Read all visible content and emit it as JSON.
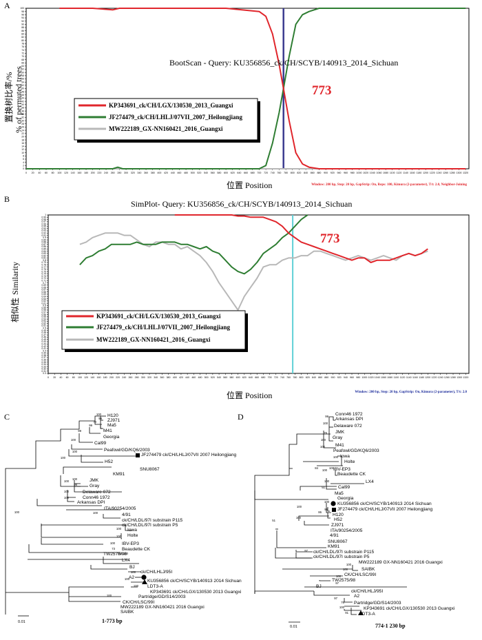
{
  "colors": {
    "red": "#e0252b",
    "green": "#2e7d32",
    "gray": "#b8b8b8",
    "vline_a": "#3b3b8f",
    "vline_b": "#5fd0d6",
    "annot": "#e0252b",
    "tree": "#000000",
    "note_a": "#e0252b",
    "note_b": "#1a2a9a"
  },
  "panel_a": {
    "letter": "A",
    "title": "BootScan - Query: KU356856_ck/CH/SCYB/140913_2014_Sichuan",
    "ylabel_cn": "置换树比率/%",
    "ylabel_en": "% of permuted trees",
    "xlabel": "位置 Position",
    "annotation": "773",
    "note": "Window: 200 bp, Step: 20 bp, GapStrip: On, Reps: 100, Kimura (2-parameter), T/t: 2.0, Neighbor-Joining",
    "legend": [
      "KP343691_ck/CH/LGX/130530_2013_Guangxi",
      "JF274479_ck/CH/LHLJ/07VII_2007_Heilongjiang",
      "MW222189_GX-NN160421_2016_Guangxi"
    ]
  },
  "panel_b": {
    "letter": "B",
    "title": "SimPlot- Query: KU356856_ck/CH/SCYB/140913_2014_Sichuan",
    "ylabel_cn": "相似性",
    "ylabel_en": "Similarity",
    "xlabel": "位置 Position",
    "annotation": "773",
    "note": "Window: 200 bp, Step: 20 bp, GapStrip: On, Kimura (2-parameter), T/t: 2.0",
    "legend": [
      "KP343691_ck/CH/LGX/130530_2013_Guangxi",
      "JF274479_ck/CH/LHLJ/07VII_2007_Heilongjiang",
      "MW222189_GX-NN160421_2016_Guangxi"
    ]
  },
  "chart_data": [
    {
      "type": "line",
      "title": "BootScan - Query: KU356856_ck/CH/SCYB/140913_2014_Sichuan",
      "xlabel": "位置 Position",
      "ylabel": "% of permuted trees",
      "xlim": [
        0,
        1330
      ],
      "ylim": [
        0,
        100
      ],
      "x_ticks": [
        0,
        20,
        40,
        60,
        80,
        100,
        120,
        140,
        160,
        180,
        200,
        220,
        240,
        260,
        280,
        300,
        320,
        340,
        360,
        380,
        400,
        420,
        440,
        460,
        480,
        500,
        520,
        540,
        560,
        580,
        600,
        620,
        640,
        660,
        680,
        700,
        720,
        740,
        760,
        780,
        800,
        820,
        840,
        860,
        880,
        900,
        920,
        940,
        960,
        980,
        1000,
        1020,
        1040,
        1060,
        1080,
        1100,
        1120,
        1140,
        1160,
        1180,
        1200,
        1220,
        1240,
        1260,
        1280,
        1300,
        1320
      ],
      "y_ticks": [
        0,
        2,
        4,
        6,
        8,
        10,
        12,
        14,
        16,
        18,
        20,
        22,
        24,
        26,
        28,
        30,
        32,
        34,
        36,
        38,
        40,
        42,
        44,
        46,
        48,
        50,
        52,
        54,
        56,
        58,
        60,
        62,
        64,
        66,
        68,
        70,
        72,
        74,
        76,
        78,
        80,
        82,
        84,
        86,
        88,
        90,
        92,
        94,
        96,
        98,
        100
      ],
      "breakpoint": 773,
      "series": [
        {
          "name": "KP343691_ck/CH/LGX/130530_2013_Guangxi",
          "color": "red",
          "x": [
            100,
            200,
            260,
            280,
            300,
            400,
            500,
            600,
            700,
            720,
            740,
            760,
            773,
            790,
            810,
            830,
            850,
            880,
            1320
          ],
          "y": [
            100,
            100,
            99,
            100,
            100,
            100,
            100,
            100,
            98,
            95,
            84,
            65,
            50,
            30,
            10,
            3,
            1,
            0,
            0
          ]
        },
        {
          "name": "JF274479_ck/CH/LHLJ/07VII_2007_Heilongjiang",
          "color": "green",
          "x": [
            0,
            260,
            275,
            290,
            700,
            720,
            740,
            760,
            773,
            790,
            810,
            830,
            850,
            880,
            1320
          ],
          "y": [
            0,
            0,
            1,
            0,
            0,
            2,
            16,
            35,
            50,
            70,
            90,
            96,
            98,
            100,
            100
          ]
        },
        {
          "name": "MW222189_GX-NN160421_2016_Guangxi",
          "color": "gray",
          "x": [
            0,
            1320
          ],
          "y": [
            0,
            0
          ]
        }
      ]
    },
    {
      "type": "line",
      "title": "SimPlot- Query: KU356856_ck/CH/SCYB/140913_2014_Sichuan",
      "xlabel": "位置 Position",
      "ylabel": "Similarity",
      "xlim": [
        0,
        1330
      ],
      "ylim": [
        0.3,
        1.0
      ],
      "x_ticks": [
        0,
        20,
        40,
        60,
        80,
        100,
        120,
        140,
        160,
        180,
        200,
        220,
        240,
        260,
        280,
        300,
        320,
        340,
        360,
        380,
        400,
        420,
        440,
        460,
        480,
        500,
        520,
        540,
        560,
        580,
        600,
        620,
        640,
        660,
        680,
        700,
        720,
        740,
        760,
        780,
        800,
        820,
        840,
        860,
        880,
        900,
        920,
        940,
        960,
        980,
        1000,
        1020,
        1040,
        1060,
        1080,
        1100,
        1120,
        1140,
        1160,
        1180,
        1200,
        1220,
        1240,
        1260,
        1280,
        1300,
        1320
      ],
      "y_ticks": [
        0.3,
        0.31,
        0.32,
        0.33,
        0.34,
        0.35,
        0.36,
        0.37,
        0.38,
        0.39,
        0.4,
        0.41,
        0.42,
        0.43,
        0.44,
        0.45,
        0.46,
        0.47,
        0.48,
        0.49,
        0.5,
        0.51,
        0.52,
        0.53,
        0.54,
        0.55,
        0.56,
        0.57,
        0.58,
        0.59,
        0.6,
        0.61,
        0.62,
        0.63,
        0.64,
        0.65,
        0.66,
        0.67,
        0.68,
        0.69,
        0.7,
        0.71,
        0.72,
        0.73,
        0.74,
        0.75,
        0.76,
        0.77,
        0.78,
        0.79,
        0.8,
        0.81,
        0.82,
        0.83,
        0.84,
        0.85,
        0.86,
        0.87,
        0.88,
        0.89,
        0.9,
        0.91,
        0.92,
        0.93,
        0.94,
        0.95,
        0.96,
        0.97,
        0.98,
        0.99,
        1.0
      ],
      "breakpoint": 773,
      "series": [
        {
          "name": "KP343691_ck/CH/LGX/130530_2013_Guangxi",
          "color": "red",
          "x": [
            400,
            420,
            440,
            460,
            480,
            500,
            520,
            540,
            560,
            580,
            600,
            620,
            640,
            660,
            680,
            700,
            720,
            740,
            760,
            780,
            800,
            820,
            840,
            860,
            880,
            900,
            920,
            940,
            960,
            980,
            1000,
            1020,
            1040,
            1060,
            1080,
            1100,
            1120,
            1140,
            1160,
            1180,
            1200
          ],
          "y": [
            1.0,
            1.0,
            1.0,
            1.0,
            1.0,
            1.0,
            1.0,
            1.0,
            1.0,
            1.0,
            0.995,
            0.995,
            0.99,
            0.99,
            0.99,
            0.98,
            0.97,
            0.95,
            0.92,
            0.9,
            0.88,
            0.87,
            0.86,
            0.85,
            0.84,
            0.83,
            0.82,
            0.81,
            0.8,
            0.81,
            0.81,
            0.79,
            0.8,
            0.8,
            0.8,
            0.81,
            0.82,
            0.83,
            0.82,
            0.83,
            0.85
          ]
        },
        {
          "name": "JF274479_ck/CH/LHLJ/07VII_2007_Heilongjiang",
          "color": "green",
          "x": [
            100,
            120,
            140,
            160,
            180,
            200,
            220,
            240,
            260,
            280,
            300,
            320,
            340,
            360,
            380,
            400,
            420,
            440,
            460,
            480,
            500,
            520,
            540,
            560,
            580,
            600,
            620,
            640,
            660,
            680,
            700,
            720,
            740,
            760,
            780,
            800,
            820
          ],
          "y": [
            0.78,
            0.81,
            0.82,
            0.84,
            0.85,
            0.87,
            0.87,
            0.87,
            0.87,
            0.88,
            0.87,
            0.87,
            0.87,
            0.88,
            0.88,
            0.88,
            0.87,
            0.87,
            0.86,
            0.85,
            0.86,
            0.84,
            0.83,
            0.8,
            0.77,
            0.75,
            0.74,
            0.76,
            0.79,
            0.83,
            0.85,
            0.87,
            0.9,
            0.92,
            0.95,
            0.98,
            1.0
          ]
        },
        {
          "name": "MW222189_GX-NN160421_2016_Guangxi",
          "color": "gray",
          "x": [
            100,
            120,
            140,
            160,
            180,
            200,
            220,
            240,
            260,
            280,
            300,
            320,
            340,
            360,
            380,
            400,
            420,
            440,
            460,
            480,
            500,
            520,
            540,
            560,
            580,
            600,
            620,
            640,
            660,
            680,
            700,
            720,
            740,
            760,
            780,
            800,
            820,
            840,
            860,
            880,
            900,
            920,
            940,
            960,
            980,
            1000,
            1020,
            1040,
            1060,
            1080,
            1100,
            1120,
            1140,
            1160,
            1180,
            1200
          ],
          "y": [
            0.87,
            0.88,
            0.9,
            0.91,
            0.92,
            0.92,
            0.92,
            0.91,
            0.91,
            0.89,
            0.87,
            0.86,
            0.88,
            0.88,
            0.87,
            0.87,
            0.85,
            0.86,
            0.84,
            0.82,
            0.79,
            0.75,
            0.7,
            0.66,
            0.62,
            0.58,
            0.64,
            0.68,
            0.72,
            0.77,
            0.78,
            0.78,
            0.8,
            0.81,
            0.81,
            0.82,
            0.82,
            0.84,
            0.84,
            0.83,
            0.82,
            0.81,
            0.8,
            0.81,
            0.82,
            0.81,
            0.8,
            0.81,
            0.82,
            0.81,
            0.8,
            0.82,
            0.83,
            0.82,
            0.83,
            0.84
          ]
        }
      ]
    }
  ],
  "tree_c": {
    "letter": "C",
    "range": "1-773 bp",
    "scale": "0.01",
    "taxa": [
      "H120",
      "ZJ971",
      "Ma5",
      "M41",
      "Georgia",
      "Cal99",
      "Peafowl/GD/KQ6/2003",
      "JF274479 ck/CH/LHLJ/07VII 2007 Heilongjiang",
      "H52",
      "SNU8067",
      "KM91",
      "JMK",
      "Gray",
      "Delaware 072",
      "Conn46 1972",
      "Arkansas DPI",
      "ITA/90254/2005",
      "4/91",
      "ck/CH/LDL/97I substrain P115",
      "ck/CH/LDL/97I substrain P5",
      "Iowa",
      "Holte",
      "IBV-EP3",
      "Beaudette CK",
      "TW2575/98",
      "LX4",
      "BJ",
      "ck/CH/LHLJ/95I",
      "A2",
      "KU356856 ck/CH/SCYB/140913 2014 Sichuan",
      "LDT3-A",
      "KP343691 ck/CH/LGX/130530 2013 Guangxi",
      "Partridge/GD/S14/2003",
      "CK/CH/LSC/99I",
      "MW222189 GX-NN160421 2016 Guangxi",
      "SAIBK"
    ],
    "bootstraps": [
      "100",
      "99",
      "70",
      "99",
      "99",
      "100",
      "100",
      "100",
      "100",
      "100",
      "98",
      "100",
      "100",
      "100",
      "100",
      "100",
      "100",
      "100",
      "73",
      "100",
      "100",
      "100",
      "100",
      "100",
      "100"
    ]
  },
  "tree_d": {
    "letter": "D",
    "range": "774-1 230 bp",
    "scale": "0.01",
    "taxa": [
      "Conn46 1972",
      "Arkansas DPI",
      "Delaware 072",
      "JMK",
      "Gray",
      "M41",
      "Peafowl/GD/KQ6/2003",
      "Iowa",
      "Holte",
      "IBV-EP3",
      "Beaudette CK",
      "LX4",
      "Cal99",
      "Ma5",
      "Georgia",
      "KU356856 ck/CH/SCYB/140913 2014 Sichuan",
      "JF274479 ck/CH/LHLJ/07VII 2007 Heilongjiang",
      "H120",
      "H52",
      "ZJ971",
      "ITA/90254/2005",
      "4/91",
      "SNU8067",
      "KM91",
      "ck/CH/LDL/97I substrain P115",
      "ck/CH/LDL/97I substrain P5",
      "MW222189 GX-NN160421 2016 Guangxi",
      "SAIBK",
      "CK/CH/LSC/99I",
      "TW2575/98",
      "BJ",
      "ck/CH/LHLJ/95I",
      "A2",
      "Partridge/GD/S14/2003",
      "KP343691 ck/CH/LGX/130530 2013 Guangxi",
      "LDT3-A"
    ],
    "bootstraps": [
      "99",
      "100",
      "76",
      "100",
      "100",
      "100",
      "100",
      "100",
      "84",
      "100",
      "51",
      "100",
      "96",
      "86",
      "100",
      "100",
      "51",
      "97",
      "100",
      "100",
      "100",
      "97",
      "97",
      "76",
      "100",
      "91"
    ]
  }
}
